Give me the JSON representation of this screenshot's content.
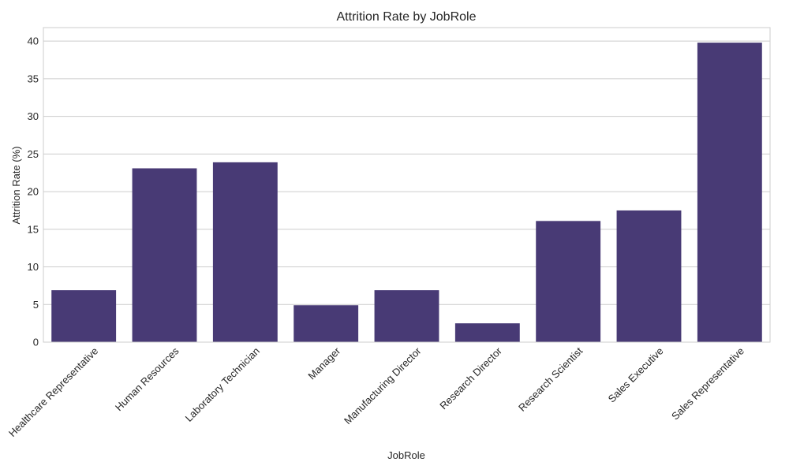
{
  "chart_data": {
    "type": "bar",
    "title": "Attrition Rate by JobRole",
    "xlabel": "JobRole",
    "ylabel": "Attrition Rate (%)",
    "categories": [
      "Healthcare Representative",
      "Human Resources",
      "Laboratory Technician",
      "Manager",
      "Manufacturing Director",
      "Research Director",
      "Research Scientist",
      "Sales Executive",
      "Sales Representative"
    ],
    "values": [
      6.9,
      23.1,
      23.9,
      4.9,
      6.9,
      2.5,
      16.1,
      17.5,
      39.8
    ],
    "ylim": [
      0,
      41.8
    ],
    "yticks": [
      0,
      5,
      10,
      15,
      20,
      25,
      30,
      35,
      40
    ],
    "grid": "horizontal",
    "bar_color": "#483a75"
  }
}
